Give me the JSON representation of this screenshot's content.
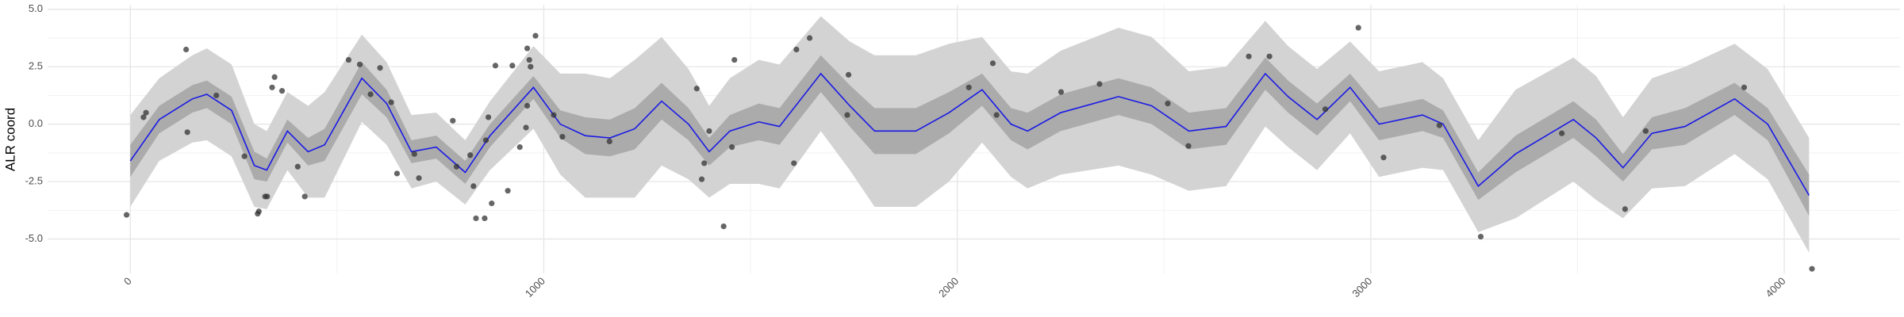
{
  "chart_data": {
    "type": "band-line",
    "y_label": "ALR coord",
    "xlim": [
      -200,
      4280
    ],
    "ylim": [
      -6.5,
      5.2
    ],
    "xticks": [
      0,
      1000,
      2000,
      3000,
      4000
    ],
    "yticks": [
      {
        "value": -5,
        "label": "-5.0"
      },
      {
        "value": -2.5,
        "label": "-2.5"
      },
      {
        "value": 0,
        "label": "0.0"
      },
      {
        "value": 2.5,
        "label": "2.5"
      },
      {
        "value": 5,
        "label": "5.0"
      }
    ],
    "grid": true,
    "x": [
      0,
      70,
      150,
      185,
      245,
      300,
      330,
      380,
      430,
      470,
      560,
      620,
      680,
      740,
      810,
      870,
      975,
      1040,
      1100,
      1160,
      1220,
      1285,
      1350,
      1400,
      1450,
      1520,
      1570,
      1670,
      1740,
      1800,
      1900,
      1980,
      2060,
      2130,
      2170,
      2250,
      2390,
      2470,
      2560,
      2650,
      2745,
      2800,
      2870,
      2950,
      3020,
      3125,
      3175,
      3260,
      3350,
      3490,
      3545,
      3610,
      3680,
      3760,
      3880,
      3960,
      4060
    ],
    "mean": {
      "color": "#1a1ae6",
      "values": [
        -1.6,
        0.2,
        1.1,
        1.3,
        0.6,
        -1.8,
        -2.0,
        -0.3,
        -1.2,
        -0.9,
        2.0,
        0.9,
        -1.2,
        -1.0,
        -2.1,
        -0.5,
        1.6,
        0.0,
        -0.5,
        -0.6,
        -0.2,
        1.0,
        0.0,
        -1.2,
        -0.3,
        0.1,
        -0.1,
        2.2,
        0.8,
        -0.3,
        -0.3,
        0.5,
        1.5,
        0.0,
        -0.3,
        0.5,
        1.2,
        0.8,
        -0.3,
        -0.1,
        2.2,
        1.2,
        0.2,
        1.6,
        0.0,
        0.4,
        0.0,
        -2.7,
        -1.3,
        0.2,
        -0.6,
        -1.9,
        -0.4,
        -0.1,
        1.1,
        0.0,
        -3.1
      ]
    },
    "inner_band": {
      "color": "#ababab",
      "lower": [
        -2.3,
        -0.4,
        0.5,
        0.7,
        0.0,
        -2.4,
        -2.5,
        -0.8,
        -1.8,
        -1.6,
        1.3,
        0.3,
        -1.7,
        -1.5,
        -2.6,
        -1.0,
        1.1,
        -0.6,
        -1.3,
        -1.4,
        -1.1,
        0.2,
        -0.7,
        -1.8,
        -1.0,
        -0.7,
        -0.9,
        1.4,
        -0.1,
        -1.3,
        -1.3,
        -0.4,
        0.8,
        -0.7,
        -1.1,
        -0.3,
        0.4,
        0.0,
        -1.1,
        -0.9,
        1.5,
        0.5,
        -0.5,
        1.0,
        -0.7,
        -0.3,
        -0.6,
        -3.3,
        -2.1,
        -0.6,
        -1.4,
        -2.5,
        -1.1,
        -0.9,
        0.4,
        -0.7,
        -4.0
      ],
      "upper": [
        -0.9,
        0.8,
        1.7,
        1.9,
        1.2,
        -1.2,
        -1.5,
        0.2,
        -0.6,
        -0.2,
        2.7,
        1.5,
        -0.7,
        -0.5,
        -1.6,
        0.0,
        2.1,
        0.6,
        0.3,
        0.2,
        0.7,
        1.8,
        0.7,
        -0.6,
        0.4,
        0.9,
        0.7,
        3.0,
        1.7,
        0.7,
        0.7,
        1.4,
        2.2,
        0.7,
        0.5,
        1.3,
        2.0,
        1.6,
        0.5,
        0.7,
        2.9,
        1.9,
        0.9,
        2.2,
        0.7,
        1.1,
        0.6,
        -2.1,
        -0.5,
        1.0,
        0.2,
        -1.3,
        0.3,
        0.7,
        1.8,
        0.7,
        -2.2
      ]
    },
    "outer_band": {
      "color": "#d3d3d3",
      "lower": [
        -3.6,
        -1.6,
        -0.8,
        -0.7,
        -1.4,
        -3.6,
        -3.7,
        -2.0,
        -3.2,
        -3.2,
        0.1,
        -0.9,
        -2.8,
        -2.5,
        -3.5,
        -2.0,
        -0.2,
        -2.2,
        -3.2,
        -3.2,
        -3.2,
        -1.8,
        -2.4,
        -3.2,
        -2.6,
        -2.6,
        -2.8,
        -0.3,
        -2.0,
        -3.6,
        -3.6,
        -2.5,
        -0.8,
        -2.3,
        -2.8,
        -2.2,
        -1.8,
        -2.2,
        -2.9,
        -2.7,
        -0.1,
        -1.0,
        -2.0,
        -0.4,
        -2.3,
        -1.9,
        -2.0,
        -4.7,
        -4.1,
        -2.5,
        -3.3,
        -4.1,
        -2.8,
        -2.7,
        -1.3,
        -2.4,
        -5.6
      ],
      "upper": [
        0.4,
        2.0,
        3.0,
        3.3,
        2.6,
        0.0,
        -0.3,
        1.4,
        0.8,
        1.4,
        3.9,
        2.7,
        0.4,
        0.5,
        -0.7,
        1.0,
        3.4,
        2.2,
        2.2,
        2.0,
        2.8,
        3.8,
        2.4,
        0.8,
        2.0,
        2.8,
        2.6,
        4.7,
        3.6,
        3.0,
        3.0,
        3.5,
        3.8,
        2.3,
        2.2,
        3.2,
        4.2,
        3.8,
        2.3,
        2.5,
        4.5,
        3.4,
        2.4,
        3.6,
        2.3,
        2.7,
        2.0,
        -0.7,
        1.5,
        2.9,
        2.1,
        0.3,
        2.0,
        2.5,
        3.5,
        2.4,
        -0.6
      ]
    },
    "points": {
      "color": "#333333",
      "x": [
        -9,
        32,
        38,
        135,
        138,
        208,
        276,
        308,
        311,
        326,
        331,
        343,
        349,
        367,
        405,
        422,
        528,
        555,
        581,
        604,
        631,
        645,
        687,
        698,
        780,
        789,
        822,
        830,
        836,
        857,
        866,
        860,
        874,
        883,
        913,
        924,
        942,
        960,
        957,
        965,
        968,
        960,
        980,
        1024,
        1045,
        1159,
        1370,
        1382,
        1388,
        1400,
        1435,
        1455,
        1461,
        1605,
        1611,
        1643,
        1737,
        1734,
        2028,
        2086,
        2095,
        2251,
        2344,
        2509,
        2559,
        2705,
        2755,
        2890,
        2970,
        3031,
        3166,
        3266,
        3462,
        3615,
        3665,
        3903,
        4067
      ],
      "y": [
        -3.95,
        0.3,
        0.5,
        3.25,
        -0.35,
        1.25,
        -1.4,
        -3.9,
        -3.8,
        -3.15,
        -3.15,
        1.6,
        2.05,
        1.45,
        -1.85,
        -3.15,
        2.8,
        2.6,
        1.3,
        2.45,
        0.95,
        -2.15,
        -1.3,
        -2.35,
        0.15,
        -1.85,
        -1.35,
        -2.7,
        -4.1,
        -4.1,
        0.3,
        -0.7,
        -3.45,
        2.55,
        -2.9,
        2.55,
        -1.0,
        0.8,
        -0.15,
        2.8,
        2.5,
        3.3,
        3.85,
        0.4,
        -0.55,
        -0.75,
        1.55,
        -2.4,
        -1.7,
        -0.3,
        -4.45,
        -1.0,
        2.8,
        -1.7,
        3.25,
        3.75,
        2.15,
        0.4,
        1.6,
        2.65,
        0.4,
        1.4,
        1.75,
        0.9,
        -0.95,
        2.95,
        2.95,
        0.65,
        4.2,
        -1.45,
        -0.05,
        -4.9,
        -0.4,
        -3.7,
        -0.3,
        1.6,
        -6.3
      ]
    }
  }
}
